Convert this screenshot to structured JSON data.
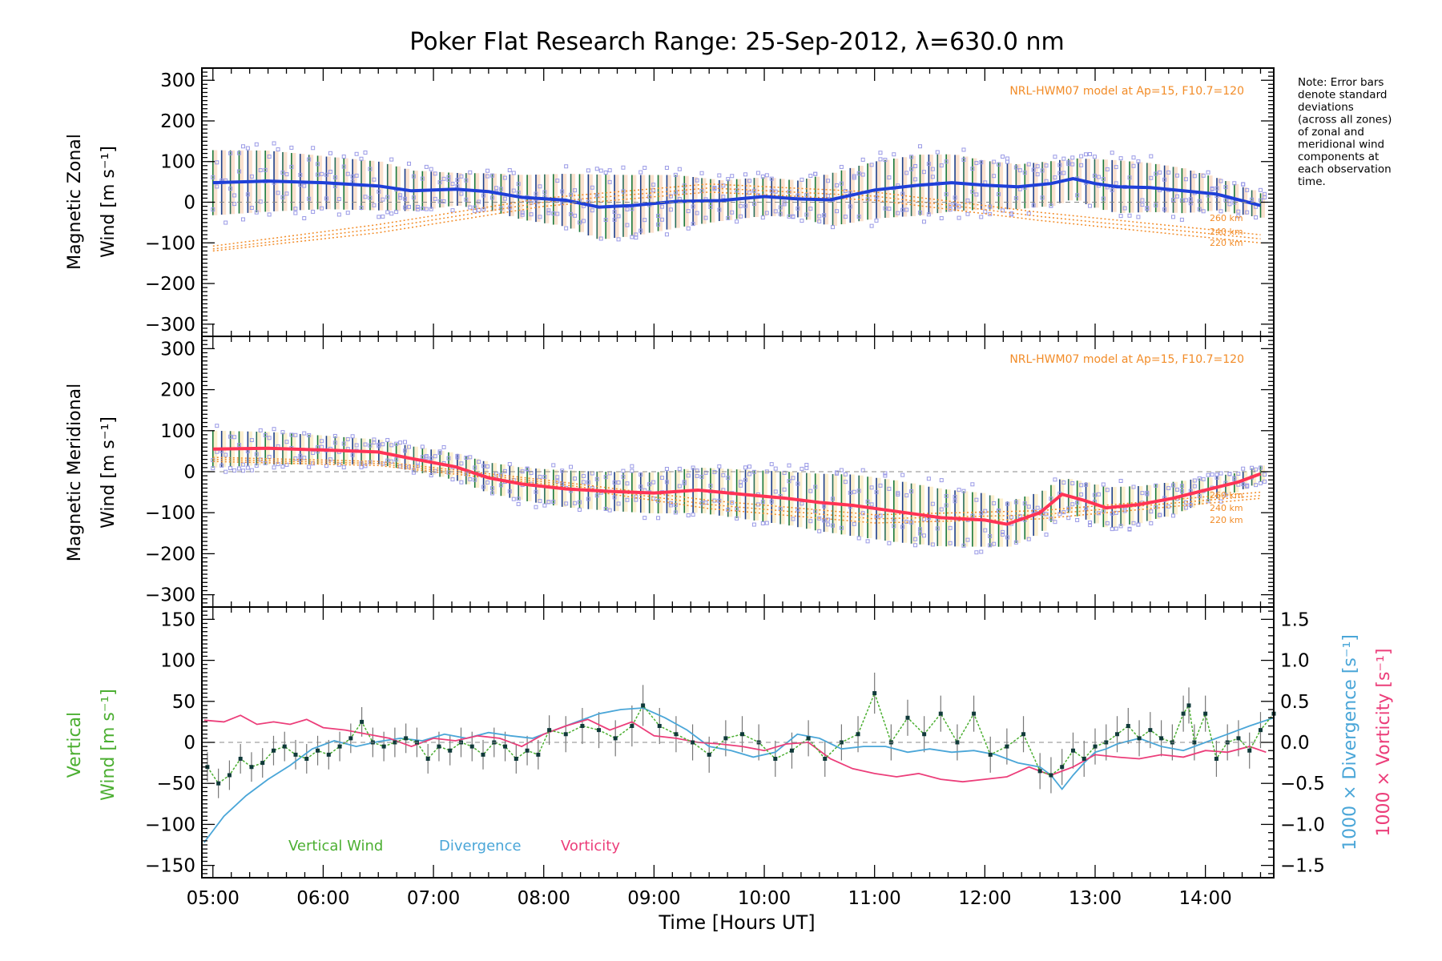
{
  "chart_data": [
    {
      "type": "line",
      "panel": "zonal",
      "title": "Poker Flat Research Range: 25-Sep-2012, λ=630.0 nm",
      "ylabel": [
        "Magnetic Zonal",
        "Wind [m s⁻¹]"
      ],
      "ylim": [
        -330,
        330
      ],
      "yticks": [
        300,
        200,
        100,
        0,
        -100,
        -200,
        -300
      ],
      "model_label": "NRL-HWM07 model at Ap=15, F10.7=120",
      "note": [
        "Note: Error bars",
        "denote standard",
        "deviations",
        "(across all zones)",
        "of zonal and",
        "meridional wind",
        "components at",
        "each observation",
        "time."
      ],
      "series": [
        {
          "name": "mean",
          "color": "#1f3fd8",
          "x": [
            5.0,
            5.5,
            6.0,
            6.5,
            6.8,
            7.2,
            7.5,
            7.8,
            8.2,
            8.5,
            8.8,
            9.2,
            9.6,
            10.0,
            10.3,
            10.6,
            11.0,
            11.4,
            11.7,
            12.0,
            12.3,
            12.6,
            12.8,
            13.0,
            13.2,
            13.5,
            13.8,
            14.1,
            14.5
          ],
          "y": [
            48,
            52,
            48,
            40,
            28,
            32,
            26,
            12,
            5,
            -12,
            -8,
            2,
            4,
            14,
            8,
            6,
            30,
            42,
            48,
            42,
            38,
            46,
            58,
            46,
            38,
            36,
            28,
            20,
            -8
          ],
          "err": [
            160,
            150,
            130,
            120,
            100,
            80,
            90,
            110,
            130,
            160,
            150,
            130,
            100,
            95,
            90,
            130,
            140,
            150,
            140,
            120,
            110,
            110,
            100,
            120,
            130,
            120,
            110,
            80,
            60
          ]
        },
        {
          "name": "220 km",
          "color": "#f28c28",
          "x": [
            5.0,
            6.5,
            8.0,
            9.5,
            11.0,
            12.5,
            14.5
          ],
          "y": [
            -120,
            -75,
            -10,
            25,
            5,
            -45,
            -100
          ]
        },
        {
          "name": "240 km",
          "color": "#f28c28",
          "x": [
            5.0,
            6.5,
            8.0,
            9.5,
            11.0,
            12.5,
            14.5
          ],
          "y": [
            -115,
            -65,
            0,
            35,
            15,
            -35,
            -90
          ]
        },
        {
          "name": "260 km",
          "color": "#f28c28",
          "x": [
            5.0,
            6.5,
            8.0,
            9.5,
            11.0,
            12.5,
            14.5
          ],
          "y": [
            -108,
            -55,
            10,
            45,
            25,
            -25,
            -80
          ]
        }
      ],
      "km_labels": [
        "260 km",
        "240 km",
        "220 km"
      ]
    },
    {
      "type": "line",
      "panel": "meridional",
      "ylabel": [
        "Magnetic Meridional",
        "Wind [m s⁻¹]"
      ],
      "ylim": [
        -330,
        330
      ],
      "yticks": [
        300,
        200,
        100,
        0,
        -100,
        -200,
        -300
      ],
      "model_label": "NRL-HWM07 model at Ap=15, F10.7=120",
      "series": [
        {
          "name": "mean",
          "color": "#ff3355",
          "x": [
            5.0,
            5.5,
            6.0,
            6.5,
            6.8,
            7.2,
            7.5,
            7.8,
            8.2,
            8.6,
            9.0,
            9.4,
            9.8,
            10.2,
            10.5,
            10.8,
            11.2,
            11.6,
            12.0,
            12.2,
            12.5,
            12.7,
            12.9,
            13.1,
            13.4,
            13.7,
            14.0,
            14.3,
            14.5
          ],
          "y": [
            55,
            57,
            53,
            48,
            32,
            12,
            -15,
            -30,
            -42,
            -48,
            -52,
            -45,
            -55,
            -65,
            -75,
            -82,
            -97,
            -112,
            -118,
            -128,
            -100,
            -55,
            -70,
            -88,
            -80,
            -65,
            -45,
            -25,
            -5
          ],
          "err": [
            90,
            80,
            70,
            60,
            60,
            65,
            75,
            80,
            90,
            95,
            100,
            110,
            120,
            130,
            140,
            150,
            150,
            140,
            130,
            110,
            100,
            80,
            90,
            100,
            90,
            80,
            60,
            45,
            40
          ]
        },
        {
          "name": "220 km",
          "color": "#f28c28",
          "x": [
            5.0,
            6.5,
            8.0,
            9.5,
            11.0,
            12.5,
            14.5
          ],
          "y": [
            25,
            15,
            -30,
            -90,
            -125,
            -115,
            -65
          ]
        },
        {
          "name": "240 km",
          "color": "#f28c28",
          "x": [
            5.0,
            6.5,
            8.0,
            9.5,
            11.0,
            12.5,
            14.5
          ],
          "y": [
            30,
            20,
            -25,
            -80,
            -115,
            -105,
            -58
          ]
        },
        {
          "name": "260 km",
          "color": "#f28c28",
          "x": [
            5.0,
            6.5,
            8.0,
            9.5,
            11.0,
            12.5,
            14.5
          ],
          "y": [
            35,
            25,
            -20,
            -70,
            -105,
            -95,
            -50
          ]
        }
      ],
      "km_labels": [
        "260 km",
        "240 km",
        "220 km"
      ]
    },
    {
      "type": "line",
      "panel": "vertical",
      "ylabel_left": [
        {
          "text": "Vertical",
          "color": "#4caf32"
        },
        {
          "text": "Wind [m s⁻¹]",
          "color": "#4caf32"
        }
      ],
      "ylabel_right": [
        {
          "text": "1000 × Divergence [s⁻¹]",
          "color": "#4aa6d8"
        },
        {
          "text": "1000 × Vorticity [s⁻¹]",
          "color": "#ec3e7a"
        }
      ],
      "ylim": [
        -165,
        165
      ],
      "yticks": [
        150,
        100,
        50,
        0,
        -50,
        -100,
        -150
      ],
      "y2lim": [
        -1.65,
        1.65
      ],
      "y2ticks": [
        "1.5",
        "1.0",
        "0.5",
        "0.0",
        "−0.5",
        "−1.0",
        "−1.5"
      ],
      "xlabel": "Time [Hours UT]",
      "xticks": [
        "05:00",
        "06:00",
        "07:00",
        "08:00",
        "09:00",
        "10:00",
        "11:00",
        "12:00",
        "13:00",
        "14:00"
      ],
      "xlim": [
        4.9,
        14.62
      ],
      "legend": [
        {
          "text": "Vertical Wind",
          "color": "#4caf32"
        },
        {
          "text": "Divergence",
          "color": "#4aa6d8"
        },
        {
          "text": "Vorticity",
          "color": "#ec3e7a"
        }
      ],
      "series": [
        {
          "name": "Vertical Wind",
          "color": "#4caf32",
          "x": [
            4.95,
            5.05,
            5.15,
            5.25,
            5.35,
            5.45,
            5.55,
            5.65,
            5.75,
            5.85,
            5.95,
            6.05,
            6.15,
            6.25,
            6.35,
            6.45,
            6.55,
            6.65,
            6.75,
            6.85,
            6.95,
            7.05,
            7.15,
            7.25,
            7.35,
            7.45,
            7.55,
            7.65,
            7.75,
            7.85,
            7.95,
            8.05,
            8.2,
            8.35,
            8.5,
            8.65,
            8.8,
            8.9,
            9.05,
            9.2,
            9.35,
            9.5,
            9.65,
            9.8,
            9.95,
            10.1,
            10.25,
            10.4,
            10.55,
            10.7,
            10.85,
            11.0,
            11.15,
            11.3,
            11.45,
            11.6,
            11.75,
            11.9,
            12.05,
            12.2,
            12.35,
            12.5,
            12.6,
            12.7,
            12.8,
            12.9,
            13.0,
            13.1,
            13.2,
            13.3,
            13.4,
            13.5,
            13.6,
            13.7,
            13.8,
            13.85,
            13.9,
            14.0,
            14.1,
            14.2,
            14.3,
            14.4,
            14.5,
            14.62
          ],
          "y": [
            -30,
            -50,
            -40,
            -20,
            -30,
            -25,
            -10,
            -5,
            -15,
            -20,
            -10,
            -15,
            -5,
            5,
            25,
            0,
            -5,
            0,
            5,
            0,
            -20,
            -5,
            -10,
            0,
            -5,
            -15,
            0,
            -5,
            -20,
            -10,
            -15,
            15,
            10,
            20,
            15,
            5,
            20,
            45,
            20,
            10,
            0,
            -15,
            5,
            10,
            0,
            -20,
            -10,
            5,
            -20,
            0,
            10,
            60,
            0,
            30,
            10,
            35,
            0,
            35,
            -15,
            -5,
            10,
            -35,
            -40,
            -30,
            -10,
            -20,
            -5,
            0,
            10,
            20,
            5,
            15,
            5,
            0,
            35,
            45,
            0,
            35,
            -20,
            0,
            5,
            -10,
            15,
            35
          ],
          "err": [
            18,
            18,
            18,
            18,
            18,
            18,
            18,
            18,
            18,
            18,
            18,
            18,
            18,
            18,
            18,
            18,
            18,
            18,
            18,
            18,
            18,
            18,
            18,
            18,
            18,
            18,
            18,
            18,
            18,
            18,
            18,
            18,
            22,
            22,
            22,
            22,
            25,
            25,
            22,
            22,
            22,
            22,
            22,
            22,
            22,
            22,
            22,
            22,
            22,
            22,
            22,
            25,
            22,
            22,
            22,
            22,
            22,
            22,
            22,
            22,
            22,
            22,
            22,
            22,
            22,
            22,
            22,
            22,
            22,
            22,
            22,
            22,
            22,
            22,
            22,
            22,
            22,
            22,
            22,
            22,
            22,
            22,
            22,
            22
          ]
        },
        {
          "name": "Divergence",
          "color": "#4aa6d8",
          "x": [
            4.92,
            5.1,
            5.3,
            5.5,
            5.7,
            5.9,
            6.1,
            6.3,
            6.5,
            6.7,
            6.9,
            7.1,
            7.3,
            7.5,
            7.7,
            7.9,
            8.1,
            8.3,
            8.5,
            8.7,
            8.9,
            9.1,
            9.3,
            9.5,
            9.7,
            9.9,
            10.1,
            10.3,
            10.5,
            10.7,
            10.9,
            11.1,
            11.3,
            11.5,
            11.7,
            11.9,
            12.1,
            12.3,
            12.5,
            12.6,
            12.7,
            12.8,
            12.9,
            13.0,
            13.1,
            13.2,
            13.4,
            13.6,
            13.8,
            14.0,
            14.2,
            14.4,
            14.62
          ],
          "y": [
            -1.22,
            -0.9,
            -0.65,
            -0.45,
            -0.28,
            -0.08,
            0.02,
            -0.05,
            0.01,
            0.05,
            0.02,
            0.1,
            0.05,
            0.12,
            0.08,
            0.05,
            0.15,
            0.25,
            0.35,
            0.4,
            0.42,
            0.3,
            0.15,
            -0.05,
            -0.1,
            -0.18,
            -0.12,
            0.1,
            0.05,
            -0.08,
            -0.05,
            -0.05,
            -0.12,
            -0.08,
            -0.12,
            -0.1,
            -0.15,
            -0.25,
            -0.3,
            -0.4,
            -0.57,
            -0.4,
            -0.25,
            -0.12,
            -0.08,
            -0.02,
            0.05,
            -0.05,
            -0.1,
            0.0,
            0.1,
            0.2,
            0.3
          ]
        },
        {
          "name": "Vorticity",
          "color": "#ec3e7a",
          "x": [
            4.92,
            5.1,
            5.25,
            5.4,
            5.55,
            5.7,
            5.85,
            6.0,
            6.2,
            6.4,
            6.6,
            6.8,
            7.0,
            7.2,
            7.4,
            7.6,
            7.8,
            8.0,
            8.2,
            8.4,
            8.6,
            8.8,
            9.0,
            9.2,
            9.4,
            9.6,
            9.8,
            10.0,
            10.2,
            10.4,
            10.6,
            10.8,
            11.0,
            11.2,
            11.4,
            11.6,
            11.8,
            12.0,
            12.2,
            12.4,
            12.6,
            12.8,
            13.0,
            13.2,
            13.4,
            13.6,
            13.8,
            14.0,
            14.2,
            14.4,
            14.55
          ],
          "y": [
            0.27,
            0.25,
            0.33,
            0.22,
            0.25,
            0.22,
            0.28,
            0.18,
            0.15,
            0.1,
            0.05,
            -0.05,
            0.05,
            0.02,
            0.08,
            0.05,
            -0.05,
            0.1,
            0.2,
            0.28,
            0.15,
            0.25,
            0.08,
            0.05,
            0.0,
            -0.02,
            -0.05,
            -0.1,
            -0.02,
            0.0,
            -0.2,
            -0.32,
            -0.38,
            -0.42,
            -0.38,
            -0.45,
            -0.48,
            -0.45,
            -0.42,
            -0.3,
            -0.4,
            -0.3,
            -0.15,
            -0.18,
            -0.2,
            -0.15,
            -0.18,
            -0.1,
            -0.12,
            -0.05,
            -0.12
          ]
        }
      ]
    }
  ]
}
